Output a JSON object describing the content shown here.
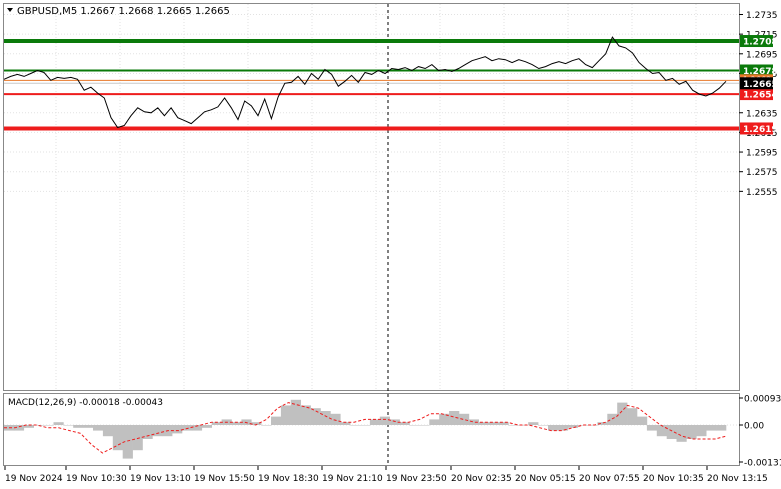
{
  "header": {
    "symbol_line": "GBPUSD,M5  1.2667 1.2668 1.2665 1.2665"
  },
  "chart_data": {
    "type": "line",
    "price_axis_ticks": [
      "1.2735",
      "1.2715",
      "1.2695",
      "1.2675",
      "1.2635",
      "1.2615",
      "1.2595",
      "1.2575",
      "1.2555"
    ],
    "levels": [
      {
        "name": "resistance-top",
        "value": 1.2708,
        "label": "1.2708",
        "color": "#0a7a0a"
      },
      {
        "name": "resistance",
        "value": 1.2678,
        "label": "1.2678",
        "color": "#0a7a0a"
      },
      {
        "name": "current",
        "value": 1.2665,
        "label": "1.2665",
        "color": "#000000"
      },
      {
        "name": "support",
        "value": 1.2654,
        "label": "1.2654",
        "color": "#ee1c1c"
      },
      {
        "name": "support-bottom",
        "value": 1.2619,
        "label": "1.2619",
        "color": "#ee1c1c"
      }
    ],
    "ask_line": {
      "value": 1.2668,
      "label": "1.2668",
      "color": "#e8782a"
    },
    "time_labels": [
      "19 Nov 2024",
      "19 Nov 10:30",
      "19 Nov 13:10",
      "19 Nov 15:50",
      "19 Nov 18:30",
      "19 Nov 21:10",
      "19 Nov 23:50",
      "20 Nov 02:35",
      "20 Nov 05:15",
      "20 Nov 07:55",
      "20 Nov 10:35",
      "20 Nov 13:15"
    ],
    "price_series": [
      1.2669,
      1.2672,
      1.2674,
      1.2672,
      1.2675,
      1.2678,
      1.2676,
      1.2668,
      1.2671,
      1.267,
      1.2671,
      1.2669,
      1.2658,
      1.2661,
      1.2655,
      1.265,
      1.263,
      1.262,
      1.2622,
      1.2632,
      1.264,
      1.2636,
      1.2635,
      1.264,
      1.2632,
      1.264,
      1.263,
      1.2627,
      1.2624,
      1.263,
      1.2636,
      1.2638,
      1.2641,
      1.265,
      1.264,
      1.2628,
      1.2647,
      1.2642,
      1.2632,
      1.2649,
      1.2629,
      1.2651,
      1.2665,
      1.2666,
      1.2672,
      1.2664,
      1.2675,
      1.2669,
      1.2679,
      1.2674,
      1.2662,
      1.2667,
      1.2673,
      1.2666,
      1.2676,
      1.2674,
      1.2678,
      1.2675,
      1.268,
      1.2679,
      1.2681,
      1.2678,
      1.2682,
      1.268,
      1.2684,
      1.2678,
      1.2679,
      1.2677,
      1.268,
      1.2684,
      1.2688,
      1.269,
      1.2692,
      1.2688,
      1.269,
      1.2689,
      1.2686,
      1.2689,
      1.2687,
      1.2684,
      1.268,
      1.2682,
      1.2685,
      1.2687,
      1.2685,
      1.2688,
      1.269,
      1.2684,
      1.2681,
      1.2688,
      1.2695,
      1.2712,
      1.2703,
      1.2701,
      1.2696,
      1.2686,
      1.268,
      1.2675,
      1.2676,
      1.2668,
      1.267,
      1.2664,
      1.2667,
      1.2658,
      1.2654,
      1.2652,
      1.2655,
      1.266,
      1.2667
    ],
    "macd": {
      "label": "MACD(12,26,9) -0.00018 -0.00043",
      "axis_ticks": [
        "0.00093",
        "0.00",
        "-0.00131"
      ],
      "histogram": [
        -0.0002,
        -0.0002,
        -0.0001,
        0.0,
        0.0,
        0.0001,
        0.0,
        -0.0001,
        -0.0001,
        -0.0002,
        -0.0004,
        -0.0009,
        -0.0012,
        -0.0009,
        -0.0005,
        -0.0004,
        -0.0004,
        -0.0003,
        -0.0002,
        -0.0002,
        -0.0001,
        0.0001,
        0.0002,
        0.0001,
        0.0002,
        0.0001,
        0.0,
        0.0003,
        0.0007,
        0.0009,
        0.0007,
        0.0006,
        0.0005,
        0.0004,
        0.0001,
        0.0,
        0.0,
        0.0002,
        0.0003,
        0.0002,
        0.0001,
        0.0,
        0.0,
        0.0002,
        0.0004,
        0.0005,
        0.0004,
        0.0002,
        0.0001,
        0.0001,
        0.0001,
        0.0,
        0.0,
        0.0001,
        0.0,
        -0.0002,
        -0.0002,
        -0.0001,
        0.0,
        0.0,
        0.0001,
        0.0004,
        0.0008,
        0.0006,
        0.0003,
        -0.0002,
        -0.0004,
        -0.0005,
        -0.0006,
        -0.0005,
        -0.0004,
        -0.0002,
        -0.0002
      ],
      "signal": [
        -0.0001,
        -0.0001,
        0.0,
        0.0,
        -0.0001,
        -0.0001,
        -0.0002,
        -0.0003,
        -0.0007,
        -0.001,
        -0.0008,
        -0.0006,
        -0.0005,
        -0.0004,
        -0.0003,
        -0.0002,
        -0.0002,
        -0.0001,
        0.0,
        0.0001,
        0.0001,
        0.0001,
        0.0001,
        0.0,
        0.0002,
        0.0006,
        0.0008,
        0.0007,
        0.0006,
        0.0004,
        0.0002,
        0.0001,
        0.0001,
        0.0002,
        0.0002,
        0.0002,
        0.0001,
        0.0001,
        0.0002,
        0.0004,
        0.0004,
        0.0003,
        0.0002,
        0.0001,
        0.0001,
        0.0001,
        0.0001,
        0.0,
        0.0,
        -0.0001,
        -0.0002,
        -0.0002,
        -0.0001,
        0.0,
        0.0,
        0.0001,
        0.0003,
        0.0007,
        0.0006,
        0.0003,
        0.0,
        -0.0002,
        -0.0004,
        -0.0005,
        -0.0005,
        -0.0005,
        -0.0004
      ]
    }
  }
}
